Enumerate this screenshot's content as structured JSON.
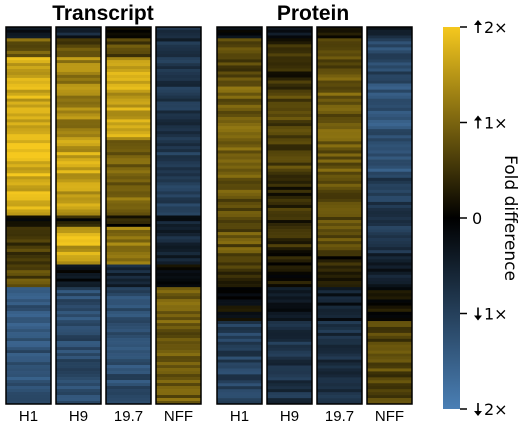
{
  "chart_data": {
    "type": "heatmap",
    "panels": [
      {
        "title": "Transcript",
        "columns": [
          "H1",
          "H9",
          "19.7",
          "NFF"
        ],
        "segments": [
          {
            "frac": 0.03,
            "values": [
              -0.3,
              -0.5,
              0.0,
              -0.6
            ]
          },
          {
            "frac": 0.05,
            "values": [
              0.9,
              0.7,
              0.7,
              -0.7
            ]
          },
          {
            "frac": 0.22,
            "values": [
              1.7,
              1.3,
              1.6,
              -0.8
            ]
          },
          {
            "frac": 0.2,
            "values": [
              1.8,
              1.6,
              1.0,
              -0.9
            ]
          },
          {
            "frac": 0.03,
            "values": [
              0.1,
              0.2,
              0.2,
              -0.4
            ]
          },
          {
            "frac": 0.05,
            "values": [
              0.6,
              1.7,
              1.2,
              -0.6
            ]
          },
          {
            "frac": 0.05,
            "values": [
              0.5,
              1.6,
              1.1,
              -0.5
            ]
          },
          {
            "frac": 0.06,
            "values": [
              0.7,
              -0.2,
              -0.5,
              0.0
            ]
          },
          {
            "frac": 0.31,
            "values": [
              -1.3,
              -1.2,
              -1.2,
              0.9
            ]
          }
        ]
      },
      {
        "title": "Protein",
        "columns": [
          "H1",
          "H9",
          "19.7",
          "NFF"
        ],
        "segments": [
          {
            "frac": 0.03,
            "values": [
              -0.1,
              -0.3,
              0.1,
              -0.5
            ]
          },
          {
            "frac": 0.12,
            "values": [
              0.7,
              0.4,
              0.8,
              -1.1
            ]
          },
          {
            "frac": 0.25,
            "values": [
              0.9,
              0.6,
              0.9,
              -1.3
            ]
          },
          {
            "frac": 0.2,
            "values": [
              0.8,
              0.4,
              0.7,
              -0.9
            ]
          },
          {
            "frac": 0.09,
            "values": [
              0.5,
              0.2,
              0.3,
              -0.4
            ]
          },
          {
            "frac": 0.09,
            "values": [
              0.0,
              -0.2,
              -0.4,
              0.1
            ]
          },
          {
            "frac": 0.22,
            "values": [
              -1.0,
              -0.8,
              -0.7,
              0.7
            ]
          }
        ]
      }
    ],
    "legend": {
      "title": "Fold difference",
      "ticks": [
        {
          "value": 2,
          "label": "2×",
          "arrow": "up"
        },
        {
          "value": 1,
          "label": "1×",
          "arrow": "up"
        },
        {
          "value": 0,
          "label": "0",
          "arrow": ""
        },
        {
          "value": -1,
          "label": "1×",
          "arrow": "down"
        },
        {
          "value": -2,
          "label": "2×",
          "arrow": "down"
        }
      ],
      "range": [
        -2,
        2
      ]
    },
    "colors": {
      "high": "#f5c81e",
      "mid": "#000000",
      "low": "#4a7fb5"
    }
  }
}
